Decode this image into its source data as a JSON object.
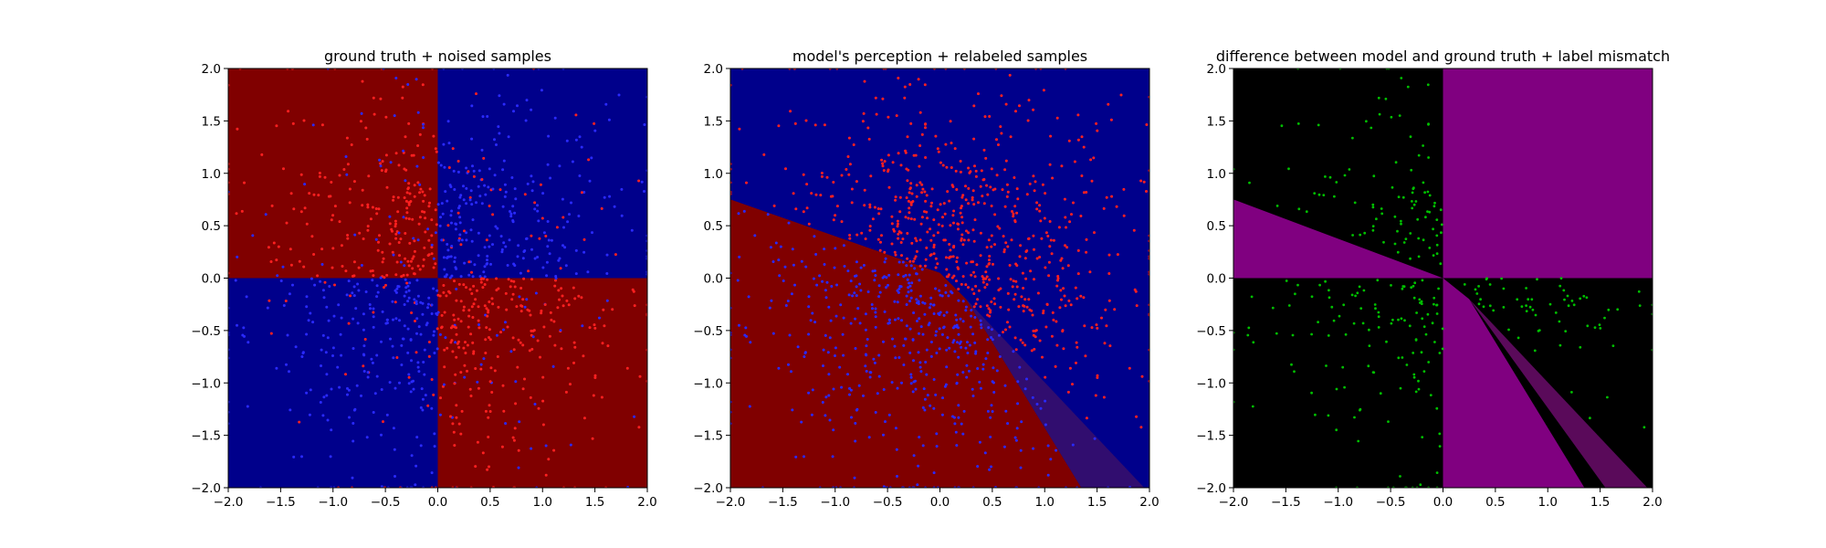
{
  "chart_data": [
    {
      "type": "scatter",
      "title": "ground truth + noised samples",
      "xlabel": "",
      "ylabel": "",
      "xlim": [
        -2.0,
        2.0
      ],
      "ylim": [
        -2.0,
        2.0
      ],
      "xticks": [
        "−2.0",
        "−1.5",
        "−1.0",
        "−0.5",
        "0.0",
        "0.5",
        "1.0",
        "1.5",
        "2.0"
      ],
      "yticks": [
        "−2.0",
        "−1.5",
        "−1.0",
        "−0.5",
        "0.0",
        "0.5",
        "1.0",
        "1.5",
        "2.0"
      ],
      "background": "quadrants: x*y>0 dark red (#800000), x*y<0 dark blue (#00008b)",
      "point_colors": {
        "class_a": "#ff2020",
        "class_b": "#2a2aff"
      },
      "series": [
        {
          "color": "#ff2020",
          "region": "mostly x*y>0 is blue, but red points lie in blue quadrants",
          "count_estimate": 500
        },
        {
          "color": "#2a2aff",
          "region": "blue points lie in red quadrants",
          "count_estimate": 500
        }
      ],
      "grid": false,
      "legend": "none"
    },
    {
      "type": "scatter",
      "title": "model's perception + relabeled samples",
      "xlabel": "",
      "ylabel": "",
      "xlim": [
        -2.0,
        2.0
      ],
      "ylim": [
        -2.0,
        2.0
      ],
      "xticks": [
        "−2.0",
        "−1.5",
        "−1.0",
        "−0.5",
        "0.0",
        "0.5",
        "1.0",
        "1.5",
        "2.0"
      ],
      "yticks": [
        "−2.0",
        "−1.5",
        "−1.0",
        "−0.5",
        "0.0",
        "0.5",
        "1.0",
        "1.5",
        "2.0"
      ],
      "background": "blue everywhere except red wedge below line from (-2,0.75) to (0,0.05) and left of line from (0,0.05) to (1.95,-2)",
      "boundary_points": [
        [
          -2.0,
          0.75
        ],
        [
          0.0,
          0.05
        ],
        [
          1.95,
          -2.0
        ]
      ],
      "point_colors": {
        "class_a": "#ff2020",
        "class_b": "#2a2aff"
      },
      "grid": false,
      "legend": "none"
    },
    {
      "type": "scatter",
      "title": "difference between model and ground truth + label mismatch",
      "xlabel": "",
      "ylabel": "",
      "xlim": [
        -2.0,
        2.0
      ],
      "ylim": [
        -2.0,
        2.0
      ],
      "xticks": [
        "−2.0",
        "−1.5",
        "−1.0",
        "−0.5",
        "0.0",
        "0.5",
        "1.0",
        "1.5",
        "2.0"
      ],
      "yticks": [
        "−2.0",
        "−1.5",
        "−1.0",
        "−0.5",
        "0.0",
        "0.5",
        "1.0",
        "1.5",
        "2.0"
      ],
      "background": "black where model agrees with ground truth, purple (#800080) where it differs",
      "point_colors": {
        "mismatch": "#00c000"
      },
      "grid": false,
      "legend": "none"
    }
  ],
  "colors": {
    "dark_red": "#800000",
    "dark_blue": "#00008b",
    "purple": "#800080",
    "black": "#000000",
    "red_point": "#ff2020",
    "blue_point": "#2a2aff",
    "green_point": "#00c000"
  }
}
